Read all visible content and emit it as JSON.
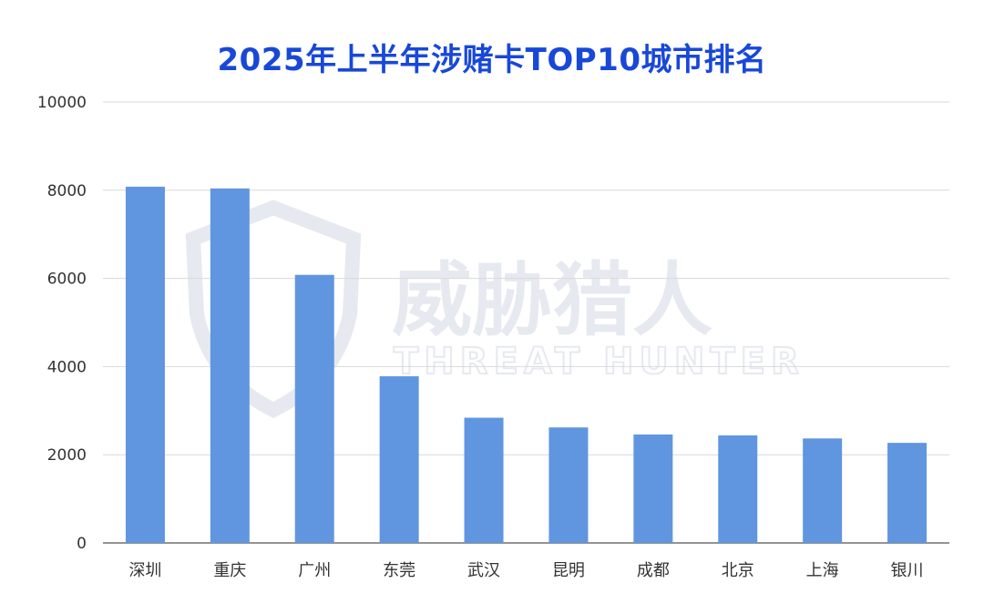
{
  "chart_data": {
    "type": "bar",
    "title": "2025年上半年涉赌卡TOP10城市排名",
    "categories": [
      "深圳",
      "重庆",
      "广州",
      "东莞",
      "武汉",
      "昆明",
      "成都",
      "北京",
      "上海",
      "银川"
    ],
    "values": [
      8080,
      8040,
      6080,
      3780,
      2840,
      2620,
      2460,
      2440,
      2370,
      2270
    ],
    "ylim": [
      0,
      10000
    ],
    "yticks": [
      0,
      2000,
      4000,
      6000,
      8000,
      10000
    ],
    "xlabel": "",
    "ylabel": "",
    "grid": true,
    "bar_color": "#6096e0",
    "title_color": "#1848d8"
  },
  "watermark": {
    "text_cn": "威胁猎人",
    "text_en": "THREAT HUNTER"
  }
}
